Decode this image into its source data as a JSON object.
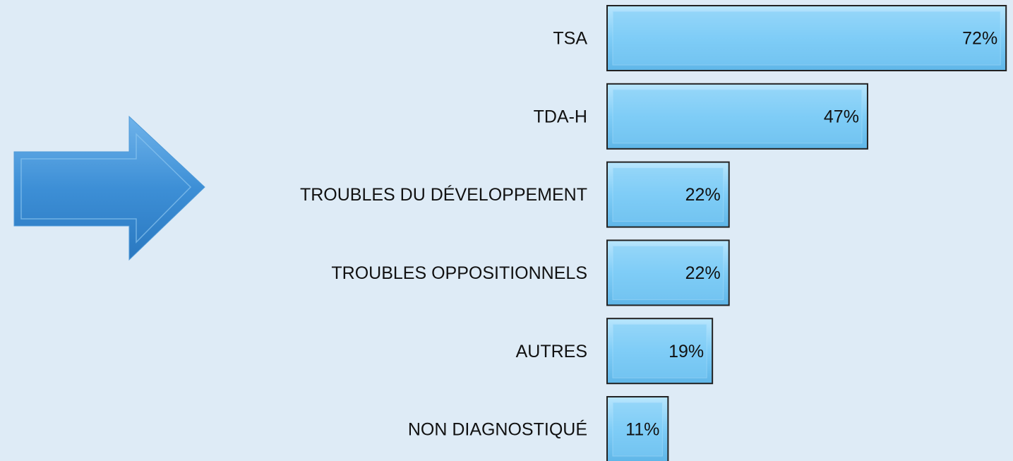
{
  "chart_data": {
    "type": "bar",
    "orientation": "horizontal",
    "categories": [
      "TSA",
      "TDA-H",
      "TROUBLES DU DÉVELOPPEMENT",
      "TROUBLES OPPOSITIONNELS",
      "AUTRES",
      "NON DIAGNOSTIQUÉ"
    ],
    "values": [
      72,
      47,
      22,
      22,
      19,
      11
    ],
    "value_labels": [
      "72%",
      "47%",
      "22%",
      "22%",
      "19%",
      "11%"
    ],
    "color": "#7fcdf7"
  }
}
